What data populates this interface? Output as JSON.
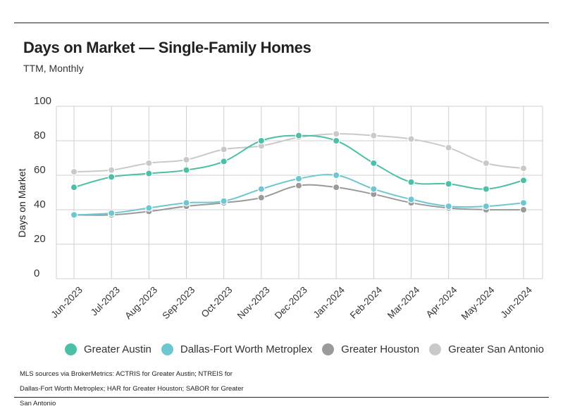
{
  "header": {
    "title": "Days on Market — Single-Family Homes",
    "subtitle": "TTM, Monthly"
  },
  "source_note": "MLS sources via BrokerMetrics: ACTRIS for Greater Austin; NTREIS for Dallas-Fort Worth Metroplex; HAR for Greater Houston; SABOR for Greater San Antonio",
  "chart_data": {
    "type": "line",
    "title": "Days on Market — Single-Family Homes",
    "subtitle": "TTM, Monthly",
    "xlabel": "",
    "ylabel": "Days on Market",
    "ylim": [
      0,
      100
    ],
    "yticks": [
      0,
      20,
      40,
      60,
      80,
      100
    ],
    "grid": true,
    "legend_position": "bottom",
    "categories": [
      "Jun-2023",
      "Jul-2023",
      "Aug-2023",
      "Sep-2023",
      "Oct-2023",
      "Nov-2023",
      "Dec-2023",
      "Jan-2024",
      "Feb-2024",
      "Mar-2024",
      "Apr-2024",
      "May-2024",
      "Jun-2024"
    ],
    "series": [
      {
        "name": "Greater Austin",
        "color": "#4dbfa6",
        "values": [
          53,
          59,
          61,
          63,
          68,
          80,
          83,
          80,
          67,
          56,
          55,
          52,
          57
        ]
      },
      {
        "name": "Dallas-Fort Worth Metroplex",
        "color": "#6ec6d0",
        "values": [
          37,
          38,
          41,
          44,
          45,
          52,
          58,
          60,
          52,
          46,
          42,
          42,
          44
        ]
      },
      {
        "name": "Greater Houston",
        "color": "#9a9a9a",
        "values": [
          37,
          37,
          39,
          42,
          44,
          47,
          54,
          53,
          49,
          44,
          41,
          40,
          40
        ]
      },
      {
        "name": "Greater San Antonio",
        "color": "#c9c9c9",
        "values": [
          62,
          63,
          67,
          69,
          75,
          77,
          82,
          84,
          83,
          81,
          76,
          67,
          64
        ]
      }
    ]
  }
}
